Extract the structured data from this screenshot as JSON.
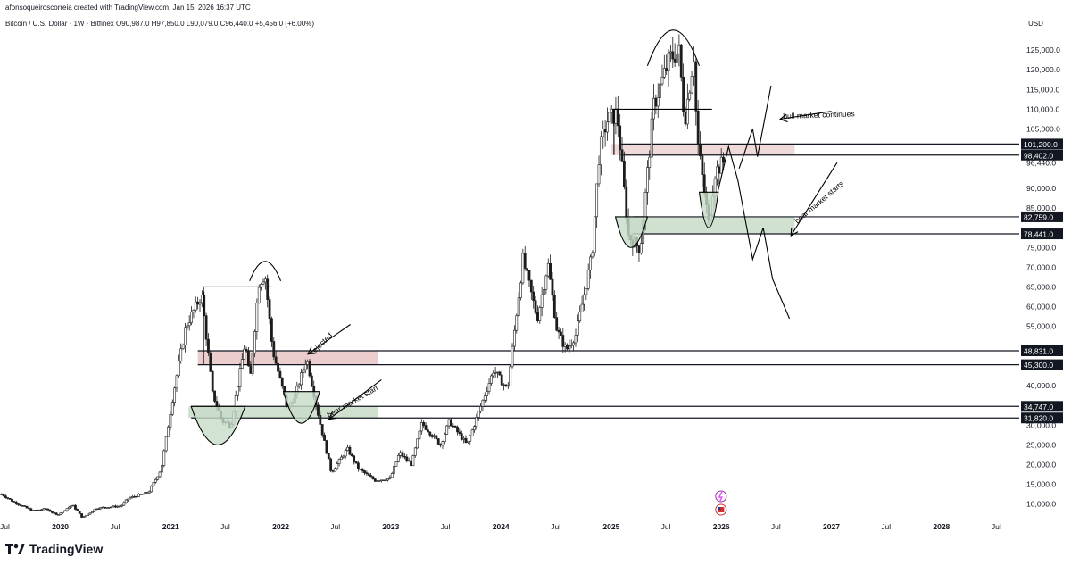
{
  "header": {
    "credit": "afonsoqueiroscorreia created with TradingView.com, Jan 15, 2026 16:37 UTC",
    "symbol_line": "Bitcoin / U.S. Dollar · 1W · Bitfinex  O90,987.0  H97,850.0  L90,079.0  C96,440.0  +5,456.0 (+6.00%)",
    "currency": "USD"
  },
  "brand": {
    "name": "TradingView"
  },
  "chart_data": {
    "type": "candlestick",
    "symbol": "Bitcoin / U.S. Dollar",
    "interval": "1W",
    "exchange": "Bitfinex",
    "last": {
      "open": 90987.0,
      "high": 97850.0,
      "low": 90079.0,
      "close": 96440.0,
      "change": 5456.0,
      "change_pct": 6.0
    },
    "ylim": [
      7000,
      130000
    ],
    "xlim": [
      "2019-06-15",
      "2028-09-15"
    ],
    "y_ticks": [
      10000,
      15000,
      20000,
      25000,
      30000,
      35000,
      40000,
      45000,
      50000,
      55000,
      60000,
      65000,
      70000,
      75000,
      80000,
      85000,
      90000,
      95000,
      100000,
      105000,
      110000,
      115000,
      120000,
      125000
    ],
    "y_tick_labels": [
      "10,000.0",
      "15,000.0",
      "20,000.0",
      "25,000.0",
      "30,000.0",
      "35,000.0",
      "40,000.0",
      "45,000.0",
      "50,000.0",
      "55,000.0",
      "60,000.0",
      "65,000.0",
      "70,000.0",
      "75,000.0",
      "80,000.0",
      "85,000.0",
      "90,000.0",
      "95,000.0",
      "100,000.0",
      "105,000.0",
      "110,000.0",
      "115,000.0",
      "120,000.0",
      "125,000.0"
    ],
    "x_ticks": [
      {
        "date": "2019-07-01",
        "label": "Jul",
        "year": false
      },
      {
        "date": "2020-01-01",
        "label": "2020",
        "year": true
      },
      {
        "date": "2020-07-01",
        "label": "Jul",
        "year": false
      },
      {
        "date": "2021-01-01",
        "label": "2021",
        "year": true
      },
      {
        "date": "2021-07-01",
        "label": "Jul",
        "year": false
      },
      {
        "date": "2022-01-01",
        "label": "2022",
        "year": true
      },
      {
        "date": "2022-07-01",
        "label": "Jul",
        "year": false
      },
      {
        "date": "2023-01-01",
        "label": "2023",
        "year": true
      },
      {
        "date": "2023-07-01",
        "label": "Jul",
        "year": false
      },
      {
        "date": "2024-01-01",
        "label": "2024",
        "year": true
      },
      {
        "date": "2024-07-01",
        "label": "Jul",
        "year": false
      },
      {
        "date": "2025-01-01",
        "label": "2025",
        "year": true
      },
      {
        "date": "2025-07-01",
        "label": "Jul",
        "year": false
      },
      {
        "date": "2026-01-01",
        "label": "2026",
        "year": true
      },
      {
        "date": "2026-07-01",
        "label": "Jul",
        "year": false
      },
      {
        "date": "2027-01-01",
        "label": "2027",
        "year": true
      },
      {
        "date": "2027-07-01",
        "label": "Jul",
        "year": false
      },
      {
        "date": "2028-01-01",
        "label": "2028",
        "year": true
      },
      {
        "date": "2028-07-01",
        "label": "Jul",
        "year": false
      }
    ],
    "price_path": [
      [
        "2019-06-20",
        12500
      ],
      [
        "2019-08-01",
        10500
      ],
      [
        "2019-10-01",
        8300
      ],
      [
        "2019-11-15",
        8800
      ],
      [
        "2019-12-20",
        7200
      ],
      [
        "2020-02-10",
        9800
      ],
      [
        "2020-03-15",
        6500
      ],
      [
        "2020-05-01",
        9000
      ],
      [
        "2020-07-20",
        9500
      ],
      [
        "2020-08-15",
        11500
      ],
      [
        "2020-10-20",
        13000
      ],
      [
        "2020-12-01",
        19000
      ],
      [
        "2021-01-10",
        38000
      ],
      [
        "2021-02-20",
        55000
      ],
      [
        "2021-04-14",
        63000
      ],
      [
        "2021-05-20",
        38000
      ],
      [
        "2021-06-21",
        31000
      ],
      [
        "2021-07-20",
        30000
      ],
      [
        "2021-09-05",
        51000
      ],
      [
        "2021-09-21",
        41000
      ],
      [
        "2021-10-20",
        66000
      ],
      [
        "2021-11-10",
        68000
      ],
      [
        "2021-12-05",
        49000
      ],
      [
        "2022-01-24",
        34000
      ],
      [
        "2022-02-20",
        38000
      ],
      [
        "2022-03-28",
        47000
      ],
      [
        "2022-05-10",
        31000
      ],
      [
        "2022-06-18",
        18000
      ],
      [
        "2022-08-10",
        24000
      ],
      [
        "2022-09-15",
        19000
      ],
      [
        "2022-11-10",
        16000
      ],
      [
        "2022-12-30",
        16500
      ],
      [
        "2023-01-30",
        23000
      ],
      [
        "2023-03-10",
        20000
      ],
      [
        "2023-04-14",
        30500
      ],
      [
        "2023-06-15",
        25000
      ],
      [
        "2023-07-14",
        31000
      ],
      [
        "2023-09-11",
        25000
      ],
      [
        "2023-10-25",
        34500
      ],
      [
        "2023-12-08",
        44000
      ],
      [
        "2024-01-23",
        39000
      ],
      [
        "2024-03-14",
        72000
      ],
      [
        "2024-05-01",
        57000
      ],
      [
        "2024-06-05",
        71000
      ],
      [
        "2024-07-05",
        54000
      ],
      [
        "2024-08-05",
        49000
      ],
      [
        "2024-09-06",
        53000
      ],
      [
        "2024-10-29",
        73000
      ],
      [
        "2024-11-22",
        99000
      ],
      [
        "2024-12-17",
        107000
      ],
      [
        "2025-01-20",
        109000
      ],
      [
        "2025-02-27",
        78000
      ],
      [
        "2025-04-07",
        74500
      ],
      [
        "2025-05-22",
        111000
      ],
      [
        "2025-07-14",
        123000
      ],
      [
        "2025-08-14",
        124500
      ],
      [
        "2025-09-01",
        107000
      ],
      [
        "2025-10-06",
        126000
      ],
      [
        "2025-10-10",
        104000
      ],
      [
        "2025-11-21",
        80500
      ],
      [
        "2025-12-10",
        94000
      ],
      [
        "2026-01-12",
        97000
      ]
    ],
    "horizontal_levels": [
      {
        "price": 101200.0,
        "label": "101,200.0"
      },
      {
        "price": 98402.0,
        "label": "98,402.0"
      },
      {
        "price": 82759.0,
        "label": "82,759.0"
      },
      {
        "price": 78441.0,
        "label": "78,441.0"
      },
      {
        "price": 48831.0,
        "label": "48,831.0"
      },
      {
        "price": 45300.0,
        "label": "45,300.0"
      },
      {
        "price": 34747.0,
        "label": "34,747.0"
      },
      {
        "price": 31820.0,
        "label": "31,820.0"
      }
    ],
    "current_price_label": "96,440.0",
    "zones": [
      {
        "kind": "resistance",
        "from": "2021-04-01",
        "to": "2022-11-20",
        "low": 45300,
        "high": 48831,
        "color": "#e8c4c4"
      },
      {
        "kind": "support",
        "from": "2021-03-01",
        "to": "2022-11-20",
        "low": 31820,
        "high": 34747,
        "color": "#c8dcc8"
      },
      {
        "kind": "resistance",
        "from": "2025-01-01",
        "to": "2026-09-01",
        "low": 98402,
        "high": 101200,
        "color": "#ecd2d2"
      },
      {
        "kind": "support",
        "from": "2025-03-01",
        "to": "2026-09-01",
        "low": 78441,
        "high": 82759,
        "color": "#c8dcc8"
      }
    ],
    "annotations": [
      {
        "text": "rejected",
        "x": "2022-05-01",
        "y": 51000,
        "angle": -45
      },
      {
        "text": "bear market start",
        "x": "2022-07-01",
        "y": 35000,
        "angle": -30
      },
      {
        "text": "bull market continues",
        "x": "2026-08-01",
        "y": 107500,
        "angle": -2
      },
      {
        "text": "bear market starts",
        "x": "2026-09-15",
        "y": 80500,
        "angle": -40
      }
    ]
  },
  "colors": {
    "up": "#089981",
    "down": "#131722",
    "candle": "#1c1c1c",
    "grid": "#f0f3fa",
    "accent": "#131722"
  }
}
